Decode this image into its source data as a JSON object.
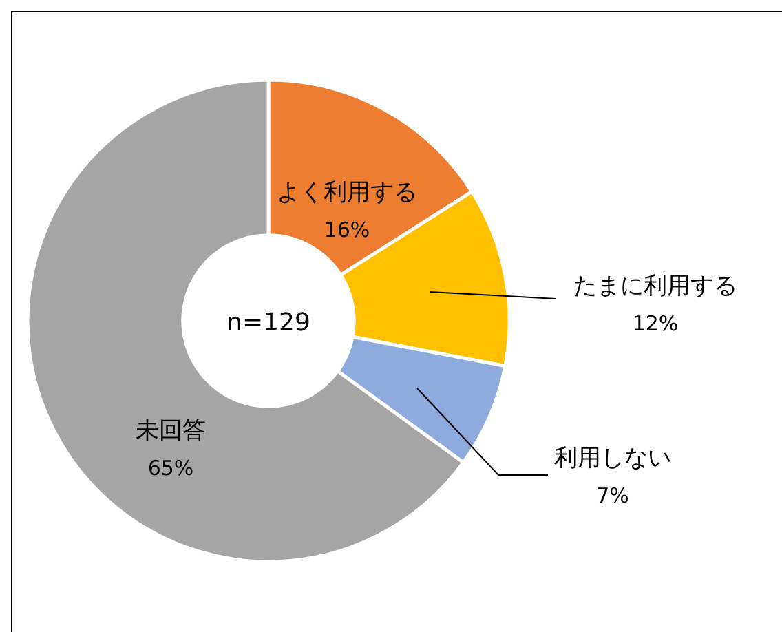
{
  "chart_data": {
    "type": "donut",
    "categories": [
      "よく利用する",
      "たまに利用する",
      "利用しない",
      "未回答"
    ],
    "values": [
      16,
      12,
      7,
      65
    ],
    "value_labels": [
      "16%",
      "12%",
      "7%",
      "65%"
    ],
    "colors": [
      "#ed7d31",
      "#ffc000",
      "#8faadc",
      "#a5a5a5"
    ],
    "annotations": [
      "n=129"
    ],
    "legend": false
  }
}
